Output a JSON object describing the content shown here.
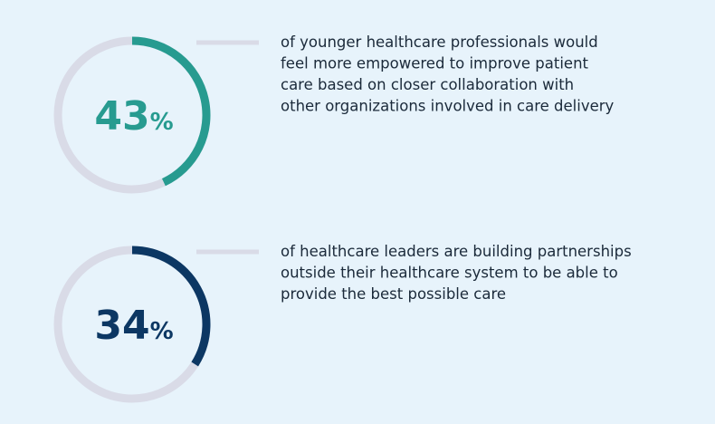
{
  "chart_data": [
    {
      "type": "donut",
      "values": [
        43
      ],
      "value_labels": [
        "43%"
      ],
      "color": "#279b90",
      "track_color": "#d9dbe7",
      "description_lines": [
        "of younger healthcare professionals would",
        "feel more empowered to improve patient",
        "care based on closer collaboration with",
        "other organizations involved in care delivery"
      ]
    },
    {
      "type": "donut",
      "values": [
        34
      ],
      "value_labels": [
        "34%"
      ],
      "color": "#0c3763",
      "track_color": "#d9dbe7",
      "description_lines": [
        "of healthcare leaders are building partnerships",
        "outside their healthcare system to be able to",
        "provide the best possible care"
      ]
    }
  ]
}
